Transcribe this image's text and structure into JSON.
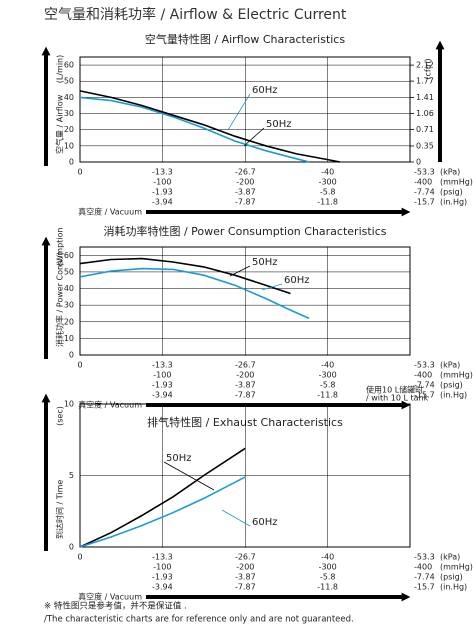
{
  "header": {
    "title": "空气量和消耗功率 / Airflow & Electric Current"
  },
  "chart_data": [
    {
      "type": "line",
      "title": "空气量特性图 / Airflow Characteristics",
      "ylabel": "空气量 / Airflow",
      "yunit": "(L/min)",
      "ylim": [
        0,
        65
      ],
      "yticks": [
        0,
        10,
        20,
        30,
        40,
        50,
        60
      ],
      "y2unit": "(cfm)",
      "y2lim": [
        0,
        2.297
      ],
      "y2ticks": [
        0,
        0.35,
        0.71,
        1.06,
        1.41,
        1.77,
        2.12
      ],
      "xlabel": "真空度 / Vacuum",
      "xlim": [
        0,
        -53.3
      ],
      "xticks": [
        0,
        -13.3,
        -26.7,
        -40,
        -53.3
      ],
      "xtick_unit": "(kPa)",
      "xtick_rows": [
        {
          "unit": "(mmHg)",
          "ticks": [
            -100,
            -200,
            -300,
            -400
          ]
        },
        {
          "unit": "(psig)",
          "ticks": [
            -1.93,
            -3.87,
            -5.8,
            -7.74
          ]
        },
        {
          "unit": "(in.Hg)",
          "ticks": [
            -3.94,
            -7.87,
            -11.8,
            -15.7
          ]
        }
      ],
      "grid": true,
      "series": [
        {
          "name": "60Hz",
          "color": "#1a9bd7",
          "x": [
            0,
            -5,
            -10,
            -15,
            -20,
            -25,
            -30,
            -35,
            -37
          ],
          "values": [
            40,
            38,
            34,
            28,
            21,
            13,
            7,
            2,
            0
          ]
        },
        {
          "name": "50Hz",
          "color": "#000000",
          "x": [
            0,
            -5,
            -10,
            -15,
            -20,
            -25,
            -30,
            -35,
            -40,
            -42
          ],
          "values": [
            44,
            40,
            35,
            29,
            23,
            16,
            10,
            5,
            1.5,
            0
          ]
        }
      ]
    },
    {
      "type": "line",
      "title": "消耗功率特性图 / Power Consumption Characteristics",
      "ylabel": "消耗功率 / Power Consumption",
      "yunit": "(W)",
      "ylim": [
        0,
        65
      ],
      "yticks": [
        0,
        10,
        20,
        30,
        40,
        50,
        60
      ],
      "xlabel": "真空度 / Vacuum",
      "xlim": [
        0,
        -53.3
      ],
      "xticks": [
        0,
        -13.3,
        -26.7,
        -40,
        -53.3
      ],
      "xtick_unit": "(kPa)",
      "xtick_rows": [
        {
          "unit": "(mmHg)",
          "ticks": [
            -100,
            -200,
            -300,
            -400
          ]
        },
        {
          "unit": "(psig)",
          "ticks": [
            -1.93,
            -3.87,
            -5.8,
            -7.74
          ]
        },
        {
          "unit": "(in.Hg)",
          "ticks": [
            -3.94,
            -7.87,
            -11.8,
            -15.7
          ]
        }
      ],
      "grid": true,
      "series": [
        {
          "name": "50Hz",
          "color": "#000000",
          "x": [
            0,
            -5,
            -10,
            -15,
            -20,
            -25,
            -30,
            -34
          ],
          "values": [
            55,
            57.5,
            58,
            56,
            53,
            48,
            42,
            37
          ]
        },
        {
          "name": "60Hz",
          "color": "#1a9bd7",
          "x": [
            0,
            -5,
            -10,
            -15,
            -20,
            -25,
            -30,
            -34,
            -37
          ],
          "values": [
            47,
            50.5,
            52,
            51.5,
            48,
            42,
            34,
            27,
            22
          ]
        }
      ]
    },
    {
      "type": "line",
      "title": "排气特性图 / Exhaust Characteristics",
      "note": [
        "使用10 L储罐时",
        "/ with 10 L tank"
      ],
      "ylabel": "到达时间 / Time",
      "yunit": "(sec)",
      "ylim": [
        0,
        10
      ],
      "yticks": [
        0,
        5,
        10
      ],
      "xlabel": "真空度 / Vacuum",
      "xlim": [
        0,
        -53.3
      ],
      "xticks": [
        0,
        -13.3,
        -26.7,
        -40,
        -53.3
      ],
      "xtick_unit": "(kPa)",
      "xtick_rows": [
        {
          "unit": "(mmHg)",
          "ticks": [
            -100,
            -200,
            -300,
            -400
          ]
        },
        {
          "unit": "(psig)",
          "ticks": [
            -1.93,
            -3.87,
            -5.8,
            -7.74
          ]
        },
        {
          "unit": "(in.Hg)",
          "ticks": [
            -3.94,
            -7.87,
            -11.8,
            -15.7
          ]
        }
      ],
      "grid": true,
      "series": [
        {
          "name": "50Hz",
          "color": "#000000",
          "x": [
            0,
            -5,
            -10,
            -15,
            -20,
            -26.7
          ],
          "values": [
            0,
            1.0,
            2.2,
            3.5,
            5.0,
            6.9
          ]
        },
        {
          "name": "60Hz",
          "color": "#1a9bd7",
          "x": [
            0,
            -5,
            -10,
            -15,
            -20,
            -26.7
          ],
          "values": [
            0,
            0.7,
            1.5,
            2.4,
            3.4,
            4.9
          ]
        }
      ]
    }
  ],
  "footnote": [
    "※ 特性图只是参考值，并不是保证值 .",
    "/The characteristic charts are for reference only and are not guaranteed."
  ]
}
